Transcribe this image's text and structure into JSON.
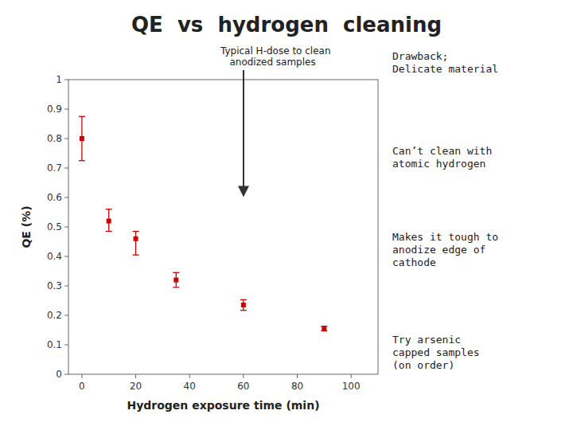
{
  "chart_data": {
    "type": "scatter",
    "title": "QE  vs  hydrogen  cleaning",
    "x_label": "Hydrogen exposure time (min)",
    "y_label": "QE (%)",
    "x": [
      0,
      10,
      20,
      35,
      60,
      90
    ],
    "values": [
      0.8,
      0.52,
      0.46,
      0.32,
      0.235,
      0.155
    ],
    "error_low": [
      0.075,
      0.035,
      0.055,
      0.025,
      0.018,
      0.008
    ],
    "error_high": [
      0.075,
      0.04,
      0.025,
      0.025,
      0.018,
      0.008
    ],
    "color": "#cc0000",
    "marker": "square",
    "xlim": [
      -5,
      110
    ],
    "ylim": [
      0,
      1
    ],
    "xticks": [
      0,
      20,
      40,
      60,
      80,
      100
    ],
    "yticks": [
      0,
      0.1,
      0.2,
      0.3,
      0.4,
      0.5,
      0.6,
      0.7,
      0.8,
      0.9,
      1
    ],
    "grid": false,
    "annotations": [
      "Typical H-dose to clean\n   anodized samples",
      "Drawback;\nDelicate material",
      "Can’t clean with\natomic hydrogen",
      "Makes it tough to\nanodize edge of\ncathode",
      "Try arsenic\ncapped samples\n(on order)"
    ]
  }
}
